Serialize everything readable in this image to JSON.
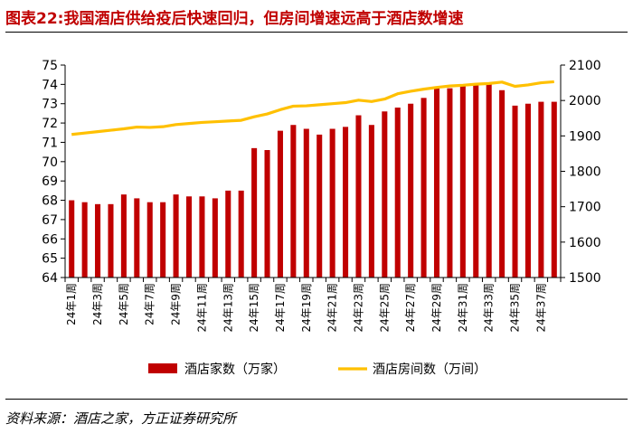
{
  "title": "图表22:我国酒店供给疫后快速回归，但房间增速远高于酒店数增速",
  "source": "资料来源：酒店之家，方正证券研究所",
  "colors": {
    "bars": "#c00000",
    "line": "#ffc000",
    "title": "#c00000"
  },
  "chart_data": {
    "type": "bar",
    "categories": [
      "24年1周",
      "24年2周",
      "24年3周",
      "24年4周",
      "24年5周",
      "24年6周",
      "24年7周",
      "24年8周",
      "24年9周",
      "24年10周",
      "24年11周",
      "24年12周",
      "24年13周",
      "24年14周",
      "24年15周",
      "24年16周",
      "24年17周",
      "24年18周",
      "24年19周",
      "24年20周",
      "24年21周",
      "24年22周",
      "24年23周",
      "24年24周",
      "24年25周",
      "24年26周",
      "24年27周",
      "24年28周",
      "24年29周",
      "24年30周",
      "24年31周",
      "24年32周",
      "24年33周",
      "24年34周",
      "24年35周",
      "24年36周",
      "24年37周",
      "24年38周"
    ],
    "x_tick_labels": [
      "24年1周",
      "24年3周",
      "24年5周",
      "24年7周",
      "24年9周",
      "24年11周",
      "24年13周",
      "24年15周",
      "24年17周",
      "24年19周",
      "24年21周",
      "24年23周",
      "24年25周",
      "24年27周",
      "24年29周",
      "24年31周",
      "24年33周",
      "24年35周",
      "24年37周"
    ],
    "series": [
      {
        "name": "酒店家数（万家）",
        "type": "bar",
        "axis": "left",
        "values": [
          68.0,
          67.9,
          67.8,
          67.8,
          68.3,
          68.1,
          67.9,
          67.9,
          68.3,
          68.2,
          68.2,
          68.1,
          68.5,
          68.5,
          70.7,
          70.6,
          71.6,
          71.9,
          71.7,
          71.4,
          71.7,
          71.8,
          72.4,
          71.9,
          72.6,
          72.8,
          73.0,
          73.3,
          73.8,
          73.8,
          73.9,
          74.0,
          74.0,
          73.7,
          72.9,
          73.0,
          73.1,
          73.1
        ]
      },
      {
        "name": "酒店房间数（万间）",
        "type": "line",
        "axis": "right",
        "values": [
          1904,
          1908,
          1912,
          1916,
          1920,
          1925,
          1924,
          1926,
          1932,
          1935,
          1938,
          1940,
          1942,
          1944,
          1954,
          1962,
          1974,
          1984,
          1985,
          1988,
          1991,
          1994,
          2001,
          1997,
          2004,
          2019,
          2026,
          2032,
          2037,
          2041,
          2043,
          2046,
          2048,
          2052,
          2040,
          2044,
          2050,
          2053
        ]
      }
    ],
    "y_left": {
      "min": 64,
      "max": 75,
      "ticks": [
        "64",
        "65",
        "66",
        "67",
        "68",
        "69",
        "70",
        "71",
        "72",
        "73",
        "74",
        "75"
      ]
    },
    "y_right": {
      "min": 1500,
      "max": 2100,
      "ticks": [
        "1500",
        "1600",
        "1700",
        "1800",
        "1900",
        "2000",
        "2100"
      ]
    },
    "grid": false,
    "legend_position": "bottom"
  }
}
